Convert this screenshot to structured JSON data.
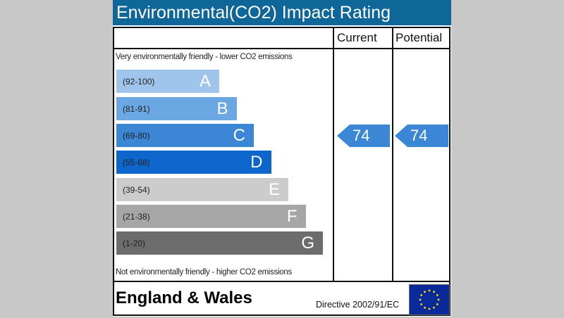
{
  "title": "Environmental(CO2) Impact Rating",
  "columns": {
    "current": "Current",
    "potential": "Potential"
  },
  "top_note": "Very environmentally friendly - lower CO2 emissions",
  "bottom_note": "Not environmentally friendly - higher CO2 emissions",
  "footer": {
    "country": "England & Wales",
    "directive": "Directive 2002/91/EC",
    "flag_icon": "eu-flag-icon"
  },
  "chart_data": {
    "type": "bar",
    "title": "Environmental(CO2) Impact Rating",
    "bands": [
      {
        "letter": "A",
        "range": "(92-100)",
        "color": "#9fc5ec"
      },
      {
        "letter": "B",
        "range": "(81-91)",
        "color": "#6ba7e2"
      },
      {
        "letter": "C",
        "range": "(69-80)",
        "color": "#3b87d6"
      },
      {
        "letter": "D",
        "range": "(55-68)",
        "color": "#0c66cc"
      },
      {
        "letter": "E",
        "range": "(39-54)",
        "color": "#cccccc"
      },
      {
        "letter": "F",
        "range": "(21-38)",
        "color": "#a6a6a6"
      },
      {
        "letter": "G",
        "range": "(1-20)",
        "color": "#6c6c6c"
      }
    ],
    "current": {
      "value": "74",
      "band": "C"
    },
    "potential": {
      "value": "74",
      "band": "C"
    },
    "arrow_color": "#3b87d6"
  }
}
